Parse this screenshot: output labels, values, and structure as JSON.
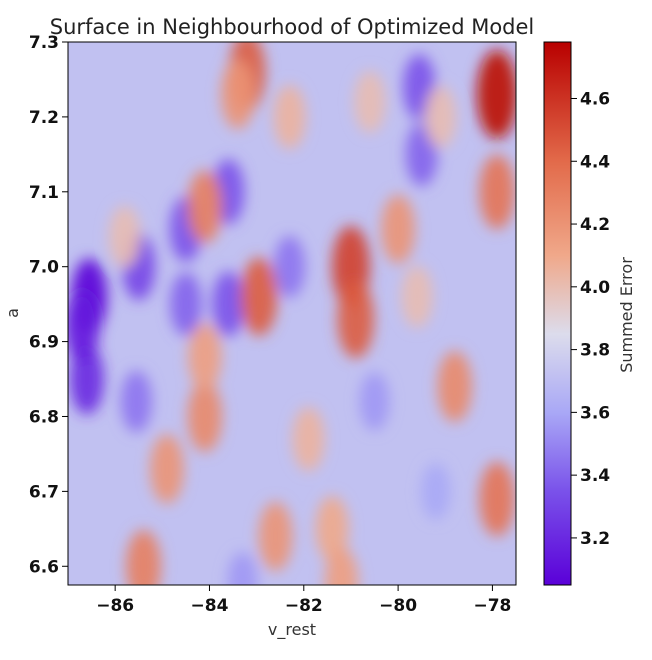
{
  "chart_data": {
    "type": "heatmap",
    "title": "Surface in Neighbourhood of Optimized Model",
    "xlabel": "v_rest",
    "ylabel": "a",
    "xlim": [
      -87.0,
      -77.5
    ],
    "ylim": [
      6.575,
      7.3
    ],
    "x_ticks": [
      "−86",
      "−84",
      "−82",
      "−80",
      "−78"
    ],
    "x_tick_values": [
      -86,
      -84,
      -82,
      -80,
      -78
    ],
    "y_ticks": [
      "6.6",
      "6.7",
      "6.8",
      "6.9",
      "7.0",
      "7.1",
      "7.2",
      "7.3"
    ],
    "y_tick_values": [
      6.6,
      6.7,
      6.8,
      6.9,
      7.0,
      7.1,
      7.2,
      7.3
    ],
    "colorbar": {
      "label": "Summed Error",
      "colormap": "coolwarm-like (purple-blue-white-orange-red)",
      "range": [
        3.05,
        4.78
      ],
      "ticks": [
        "3.2",
        "3.4",
        "3.6",
        "3.8",
        "4.0",
        "4.2",
        "4.4",
        "4.6"
      ],
      "tick_values": [
        3.2,
        3.4,
        3.6,
        3.8,
        4.0,
        4.2,
        4.4,
        4.6
      ],
      "stops": [
        {
          "value": 3.05,
          "color": "#5a00d8"
        },
        {
          "value": 3.35,
          "color": "#7a52ea"
        },
        {
          "value": 3.6,
          "color": "#a9a8f6"
        },
        {
          "value": 3.85,
          "color": "#dcdcec"
        },
        {
          "value": 4.1,
          "color": "#f0a88a"
        },
        {
          "value": 4.4,
          "color": "#e26a4a"
        },
        {
          "value": 4.78,
          "color": "#b80000"
        }
      ]
    },
    "background_value": 3.72,
    "features": [
      {
        "x": -86.55,
        "y": 6.96,
        "value": 3.05
      },
      {
        "x": -86.6,
        "y": 6.85,
        "value": 3.2
      },
      {
        "x": -86.7,
        "y": 6.92,
        "value": 3.15
      },
      {
        "x": -85.5,
        "y": 7.0,
        "value": 3.3
      },
      {
        "x": -85.55,
        "y": 6.82,
        "value": 3.45
      },
      {
        "x": -84.5,
        "y": 7.05,
        "value": 3.35
      },
      {
        "x": -84.5,
        "y": 6.95,
        "value": 3.4
      },
      {
        "x": -83.6,
        "y": 7.1,
        "value": 3.35
      },
      {
        "x": -83.6,
        "y": 6.95,
        "value": 3.35
      },
      {
        "x": -82.3,
        "y": 7.0,
        "value": 3.45
      },
      {
        "x": -79.55,
        "y": 7.24,
        "value": 3.35
      },
      {
        "x": -79.5,
        "y": 7.15,
        "value": 3.4
      },
      {
        "x": -83.2,
        "y": 7.26,
        "value": 4.45
      },
      {
        "x": -83.4,
        "y": 7.23,
        "value": 4.2
      },
      {
        "x": -82.95,
        "y": 6.96,
        "value": 4.45
      },
      {
        "x": -81.0,
        "y": 7.0,
        "value": 4.55
      },
      {
        "x": -80.9,
        "y": 6.93,
        "value": 4.45
      },
      {
        "x": -77.9,
        "y": 7.23,
        "value": 4.75
      },
      {
        "x": -77.9,
        "y": 7.1,
        "value": 4.35
      },
      {
        "x": -84.1,
        "y": 7.08,
        "value": 4.3
      },
      {
        "x": -84.1,
        "y": 6.8,
        "value": 4.25
      },
      {
        "x": -84.1,
        "y": 6.88,
        "value": 4.15
      },
      {
        "x": -85.4,
        "y": 6.6,
        "value": 4.3
      },
      {
        "x": -84.9,
        "y": 6.73,
        "value": 4.2
      },
      {
        "x": -82.6,
        "y": 6.64,
        "value": 4.2
      },
      {
        "x": -81.4,
        "y": 6.65,
        "value": 4.1
      },
      {
        "x": -81.9,
        "y": 6.77,
        "value": 4.05
      },
      {
        "x": -80.0,
        "y": 7.05,
        "value": 4.2
      },
      {
        "x": -79.6,
        "y": 6.96,
        "value": 4.0
      },
      {
        "x": -78.8,
        "y": 6.84,
        "value": 4.25
      },
      {
        "x": -77.9,
        "y": 6.69,
        "value": 4.35
      },
      {
        "x": -82.3,
        "y": 7.2,
        "value": 4.05
      },
      {
        "x": -80.6,
        "y": 7.22,
        "value": 4.0
      },
      {
        "x": -79.1,
        "y": 7.2,
        "value": 4.0
      },
      {
        "x": -85.8,
        "y": 7.04,
        "value": 4.0
      },
      {
        "x": -81.2,
        "y": 6.58,
        "value": 4.15
      },
      {
        "x": -80.5,
        "y": 6.82,
        "value": 3.55
      },
      {
        "x": -79.2,
        "y": 6.7,
        "value": 3.6
      },
      {
        "x": -83.3,
        "y": 6.58,
        "value": 3.55
      }
    ]
  }
}
